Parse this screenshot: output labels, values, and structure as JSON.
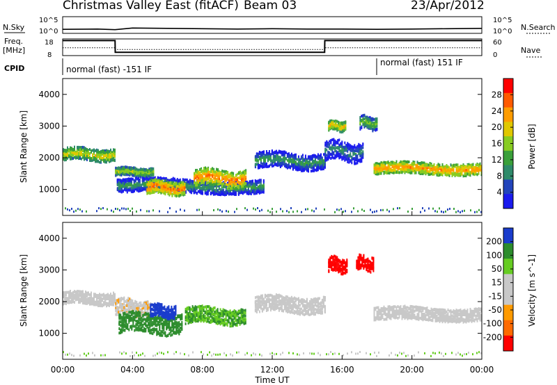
{
  "header": {
    "title": "Christmas Valley East (fitACF)",
    "beam": "Beam 03",
    "date": "23/Apr/2012"
  },
  "noise_panel": {
    "left_label": "N.Sky",
    "right_label": "N.Search",
    "left_ticks": [
      "10^5",
      "10^0"
    ],
    "right_ticks": [
      "10^5",
      "10^0"
    ]
  },
  "freq_panel": {
    "left_label_1": "Freq.",
    "left_label_2": "[MHz]",
    "right_label": "Nave",
    "left_ticks": [
      "18",
      "8"
    ],
    "right_ticks": [
      "60",
      "0"
    ]
  },
  "cpid": {
    "label": "CPID",
    "segments": [
      {
        "text": "normal (fast) -151 IF"
      },
      {
        "text": "normal (fast) 151 IF"
      }
    ]
  },
  "power_panel": {
    "ylabel": "Slant Range [km]",
    "yticks": [
      "4000",
      "3000",
      "2000",
      "1000"
    ],
    "colorbar_label": "Power [dB]",
    "colorbar_ticks": [
      "28",
      "24",
      "20",
      "16",
      "12",
      "8",
      "4"
    ],
    "colors": [
      "#ff0000",
      "#ff5a00",
      "#ff9c00",
      "#e0c800",
      "#88cc22",
      "#3aa03a",
      "#2e8a6a",
      "#2244bb",
      "#1a1aee"
    ]
  },
  "velocity_panel": {
    "ylabel": "Slant Range [km]",
    "yticks": [
      "4000",
      "3000",
      "2000",
      "1000"
    ],
    "colorbar_label": "Velocity [m s^-1]",
    "colorbar_ticks": [
      "200",
      "100",
      "50",
      "15",
      "-15",
      "-50",
      "-100",
      "-200"
    ],
    "colors": [
      "#1a3ccc",
      "#2c8c2c",
      "#66cc22",
      "#c8c8c8",
      "#c8c8c8",
      "#ff9a00",
      "#ff6a00",
      "#ff0000"
    ]
  },
  "xaxis": {
    "label": "Time UT",
    "ticks": [
      "00:00",
      "04:00",
      "08:00",
      "12:00",
      "16:00",
      "20:00",
      "00:00"
    ]
  },
  "chart_data": [
    {
      "type": "line",
      "title": "N.Sky / N.Search",
      "x": [
        0,
        2,
        3,
        4,
        6,
        8,
        10,
        12,
        14,
        16,
        18,
        20,
        22,
        24
      ],
      "series": [
        {
          "values": [
            1.2,
            1.3,
            1.1,
            1.6,
            1.5,
            1.4,
            1.3,
            1.4,
            1.3,
            1.3,
            1.2,
            1.3,
            1.4,
            1.5
          ]
        }
      ],
      "ylim": [
        0,
        5
      ]
    },
    {
      "type": "line",
      "title": "Freq. [MHz] / Nave",
      "x": [
        0,
        3.0,
        3.01,
        15.0,
        15.01,
        24
      ],
      "series": [
        {
          "name": "Freq.",
          "values": [
            17,
            17,
            10,
            10,
            17,
            17
          ]
        },
        {
          "name": "Nave",
          "values": [
            28,
            28,
            22,
            22,
            28,
            28
          ]
        }
      ],
      "ylim": [
        8,
        18
      ]
    },
    {
      "type": "heatmap",
      "title": "Power [dB]",
      "xlabel": "Time UT",
      "ylabel": "Slant Range [km]",
      "xlim": [
        0,
        24
      ],
      "ylim": [
        180,
        4500
      ],
      "colorbar": [
        4,
        8,
        12,
        16,
        20,
        24,
        28
      ],
      "echo_bands": [
        {
          "start_h": 0.0,
          "end_h": 3.0,
          "range_km": 2100,
          "width_km": 380,
          "power_db": 20
        },
        {
          "start_h": 3.0,
          "end_h": 5.2,
          "range_km": 1550,
          "width_km": 260,
          "power_db": 18
        },
        {
          "start_h": 3.1,
          "end_h": 11.5,
          "range_km": 1100,
          "width_km": 420,
          "power_db": 12
        },
        {
          "start_h": 4.8,
          "end_h": 7.0,
          "range_km": 1050,
          "width_km": 420,
          "power_db": 26
        },
        {
          "start_h": 7.5,
          "end_h": 10.5,
          "range_km": 1350,
          "width_km": 520,
          "power_db": 25
        },
        {
          "start_h": 11.0,
          "end_h": 15.0,
          "range_km": 1900,
          "width_km": 500,
          "power_db": 12
        },
        {
          "start_h": 15.0,
          "end_h": 17.2,
          "range_km": 2200,
          "width_km": 600,
          "power_db": 10
        },
        {
          "start_h": 15.2,
          "end_h": 16.2,
          "range_km": 3000,
          "width_km": 300,
          "power_db": 22
        },
        {
          "start_h": 17.0,
          "end_h": 18.0,
          "range_km": 3100,
          "width_km": 400,
          "power_db": 16
        },
        {
          "start_h": 17.8,
          "end_h": 24.0,
          "range_km": 1650,
          "width_km": 360,
          "power_db": 24
        }
      ]
    },
    {
      "type": "heatmap",
      "title": "Velocity [m s^-1]",
      "xlabel": "Time UT",
      "ylabel": "Slant Range [km]",
      "xlim": [
        0,
        24
      ],
      "ylim": [
        180,
        4500
      ],
      "colorbar": [
        -200,
        -100,
        -50,
        -15,
        15,
        50,
        100,
        200
      ],
      "echo_bands": [
        {
          "start_h": 0.0,
          "end_h": 3.0,
          "range_km": 2100,
          "width_km": 380,
          "velocity": 0
        },
        {
          "start_h": 3.0,
          "end_h": 5.0,
          "range_km": 1800,
          "width_km": 500,
          "velocity": -10
        },
        {
          "start_h": 3.2,
          "end_h": 6.8,
          "range_km": 1300,
          "width_km": 600,
          "velocity": 80
        },
        {
          "start_h": 5.0,
          "end_h": 6.5,
          "range_km": 1700,
          "width_km": 400,
          "velocity": 200
        },
        {
          "start_h": 7.0,
          "end_h": 10.5,
          "range_km": 1550,
          "width_km": 500,
          "velocity": 60
        },
        {
          "start_h": 11.0,
          "end_h": 15.0,
          "range_km": 1900,
          "width_km": 500,
          "velocity": 0
        },
        {
          "start_h": 15.2,
          "end_h": 16.3,
          "range_km": 3150,
          "width_km": 450,
          "velocity": -200
        },
        {
          "start_h": 16.8,
          "end_h": 17.8,
          "range_km": 3200,
          "width_km": 450,
          "velocity": -200
        },
        {
          "start_h": 17.8,
          "end_h": 24.0,
          "range_km": 1600,
          "width_km": 400,
          "velocity": 0
        }
      ]
    }
  ]
}
